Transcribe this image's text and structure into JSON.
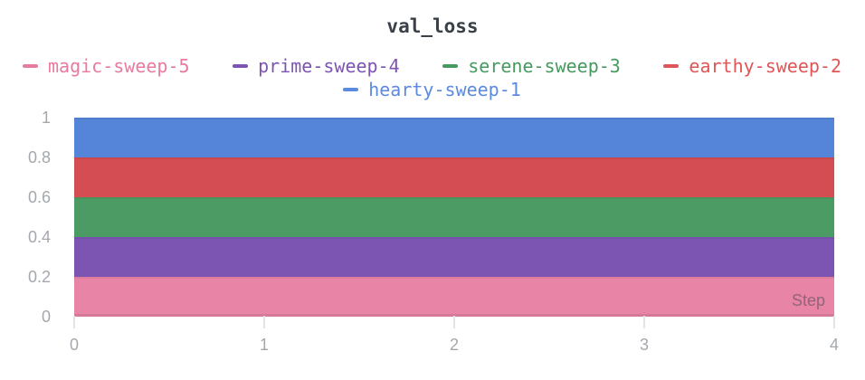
{
  "chart_data": {
    "type": "area",
    "title": "val_loss",
    "xlabel": "Step",
    "xlim": [
      0,
      4
    ],
    "ylim": [
      0,
      1
    ],
    "grid": false,
    "legend_position": "top",
    "x": [
      0,
      1,
      2,
      3,
      4
    ],
    "x_tick_labels": [
      "0",
      "1",
      "2",
      "3",
      "4"
    ],
    "y_tick_values": [
      0,
      0.2,
      0.4,
      0.6,
      0.8,
      1
    ],
    "y_tick_labels": [
      "0",
      "0.2",
      "0.4",
      "0.6",
      "0.8",
      "1"
    ],
    "series": [
      {
        "name": "magic-sweep-5",
        "color": "#e87b9e",
        "fill": "#e884a6",
        "values": [
          0.2,
          0.2,
          0.2,
          0.2,
          0.2
        ]
      },
      {
        "name": "prime-sweep-4",
        "color": "#7d54b2",
        "fill": "#7b55b1",
        "values": [
          0.4,
          0.4,
          0.4,
          0.4,
          0.4
        ]
      },
      {
        "name": "serene-sweep-3",
        "color": "#459a5f",
        "fill": "#4c9a64",
        "values": [
          0.6,
          0.6,
          0.6,
          0.6,
          0.6
        ]
      },
      {
        "name": "earthy-sweep-2",
        "color": "#e05555",
        "fill": "#d44d52",
        "values": [
          0.8,
          0.8,
          0.8,
          0.8,
          0.8
        ]
      },
      {
        "name": "hearty-sweep-1",
        "color": "#5b8ae0",
        "fill": "#5585d8",
        "values": [
          1.0,
          1.0,
          1.0,
          1.0,
          1.0
        ]
      }
    ],
    "legend_rows": [
      [
        0,
        1,
        2,
        3
      ],
      [
        4
      ]
    ]
  }
}
